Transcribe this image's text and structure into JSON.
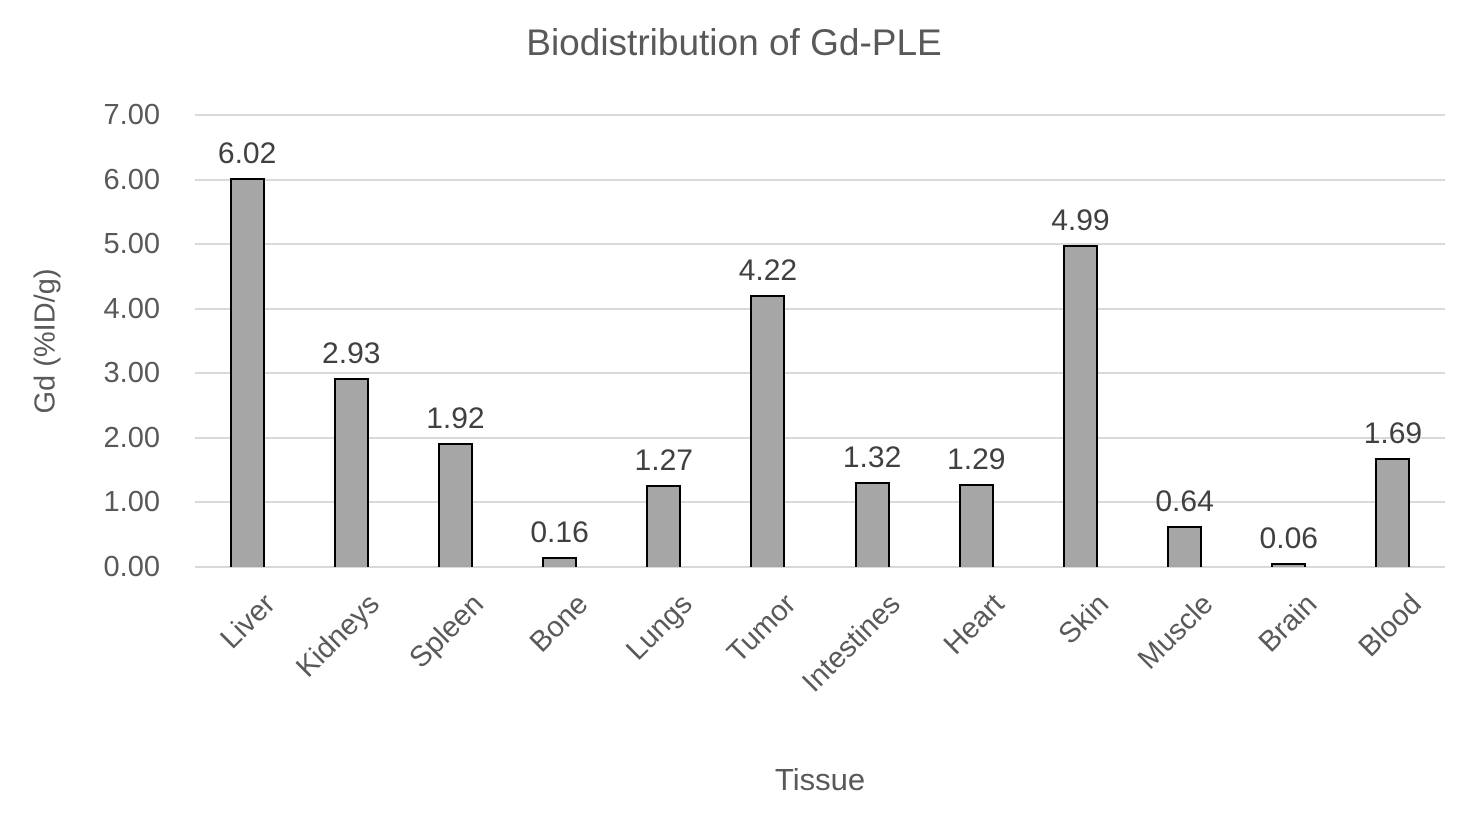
{
  "chart_data": {
    "type": "bar",
    "title": "Biodistribution of Gd-PLE",
    "xlabel": "Tissue",
    "ylabel": "Gd (%ID/g)",
    "categories": [
      "Liver",
      "Kidneys",
      "Spleen",
      "Bone",
      "Lungs",
      "Tumor",
      "Intestines",
      "Heart",
      "Skin",
      "Muscle",
      "Brain",
      "Blood"
    ],
    "values": [
      6.02,
      2.93,
      1.92,
      0.16,
      1.27,
      4.22,
      1.32,
      1.29,
      4.99,
      0.64,
      0.06,
      1.69
    ],
    "value_labels": [
      "6.02",
      "2.93",
      "1.92",
      "0.16",
      "1.27",
      "4.22",
      "1.32",
      "1.29",
      "4.99",
      "0.64",
      "0.06",
      "1.69"
    ],
    "ylim": [
      0,
      7
    ],
    "ytick_step": 1,
    "ytick_labels": [
      "0.00",
      "1.00",
      "2.00",
      "3.00",
      "4.00",
      "5.00",
      "6.00",
      "7.00"
    ],
    "grid": "horizontal",
    "legend": "none",
    "colors": {
      "bar_fill": "#a6a6a6",
      "bar_border": "#000000",
      "gridline": "#d9d9d9",
      "axis_text": "#595959",
      "data_label_text": "#404040"
    }
  }
}
